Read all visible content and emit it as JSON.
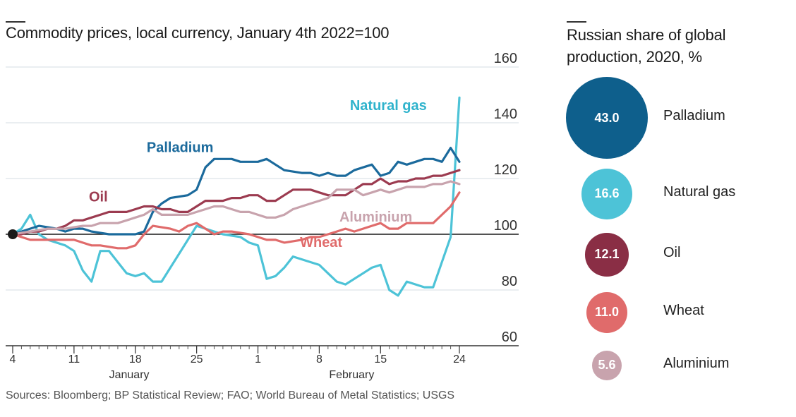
{
  "chart_data": [
    {
      "type": "line",
      "title": "Commodity prices, local currency, January 4th 2022=100",
      "y_ticks": [
        "160",
        "140",
        "120",
        "100",
        "80",
        "60"
      ],
      "ylim": [
        60,
        160
      ],
      "baseline": 100,
      "x_day_range": [
        0,
        51
      ],
      "x_ticks": [
        {
          "day": 0,
          "label": "4"
        },
        {
          "day": 7,
          "label": "11"
        },
        {
          "day": 14,
          "label": "18"
        },
        {
          "day": 21,
          "label": "25"
        },
        {
          "day": 28,
          "label": "1"
        },
        {
          "day": 35,
          "label": "8"
        },
        {
          "day": 42,
          "label": "15"
        },
        {
          "day": 51,
          "label": "24"
        }
      ],
      "month_labels": [
        {
          "day": 13.3,
          "label": "January"
        },
        {
          "day": 38.7,
          "label": "February"
        }
      ],
      "series": [
        {
          "name": "Natural gas",
          "color": "#4dc3d7",
          "x": [
            0,
            1,
            2,
            3,
            4,
            6,
            7,
            8,
            9,
            10,
            11,
            12,
            13,
            14,
            15,
            16,
            17,
            18,
            20,
            21,
            22,
            23,
            24,
            26,
            27,
            28,
            29,
            30,
            31,
            32,
            34,
            35,
            36,
            37,
            38,
            40,
            41,
            42,
            43,
            44,
            45,
            46,
            47,
            48,
            49,
            50,
            51
          ],
          "y": [
            100,
            102,
            107,
            100,
            98,
            96,
            94,
            87,
            83,
            94,
            94,
            90,
            86,
            85,
            86,
            83,
            83,
            88,
            98,
            103,
            102,
            101,
            100,
            99,
            97,
            96,
            84,
            85,
            88,
            92,
            90,
            89,
            86,
            83,
            82,
            86,
            88,
            89,
            80,
            78,
            83,
            82,
            81,
            81,
            90,
            99,
            149
          ]
        },
        {
          "name": "Palladium",
          "color": "#1b6a9c",
          "x": [
            0,
            1,
            2,
            3,
            5,
            6,
            7,
            8,
            9,
            11,
            12,
            13,
            14,
            15,
            16,
            17,
            18,
            20,
            21,
            22,
            23,
            24,
            25,
            26,
            27,
            28,
            29,
            30,
            31,
            33,
            34,
            35,
            36,
            37,
            38,
            39,
            40,
            41,
            42,
            43,
            44,
            45,
            46,
            47,
            48,
            49,
            50,
            51
          ],
          "y": [
            100,
            101,
            102,
            103,
            102,
            101,
            102,
            102,
            101,
            100,
            100,
            100,
            100,
            101,
            108,
            111,
            113,
            114,
            116,
            124,
            127,
            127,
            127,
            126,
            126,
            126,
            127,
            125,
            123,
            122,
            122,
            121,
            122,
            121,
            121,
            123,
            124,
            125,
            121,
            122,
            126,
            125,
            126,
            127,
            127,
            126,
            131,
            126
          ]
        },
        {
          "name": "Oil",
          "color": "#9c3b50",
          "x": [
            0,
            1,
            2,
            3,
            4,
            5,
            6,
            7,
            8,
            9,
            10,
            11,
            12,
            13,
            14,
            15,
            16,
            17,
            18,
            19,
            20,
            21,
            22,
            23,
            24,
            25,
            26,
            27,
            28,
            29,
            30,
            31,
            32,
            33,
            34,
            35,
            36,
            37,
            38,
            39,
            40,
            41,
            42,
            43,
            44,
            45,
            46,
            47,
            48,
            49,
            50,
            51
          ],
          "y": [
            100,
            100,
            101,
            101,
            102,
            102,
            103,
            105,
            105,
            106,
            107,
            108,
            108,
            108,
            109,
            110,
            110,
            109,
            109,
            108,
            108,
            110,
            112,
            112,
            112,
            113,
            113,
            114,
            114,
            112,
            112,
            114,
            116,
            116,
            116,
            115,
            114,
            114,
            114,
            116,
            118,
            118,
            120,
            118,
            119,
            119,
            120,
            120,
            121,
            121,
            122,
            123
          ]
        },
        {
          "name": "Aluminium",
          "color": "#c8a3ad",
          "x": [
            0,
            2,
            4,
            6,
            8,
            9,
            10,
            11,
            12,
            13,
            14,
            15,
            16,
            17,
            18,
            19,
            20,
            21,
            22,
            23,
            24,
            25,
            26,
            27,
            28,
            29,
            30,
            31,
            32,
            33,
            34,
            35,
            36,
            37,
            38,
            39,
            40,
            41,
            42,
            43,
            44,
            45,
            46,
            47,
            48,
            49,
            50,
            51
          ],
          "y": [
            100,
            101,
            102,
            102,
            103,
            103,
            104,
            104,
            104,
            105,
            106,
            107,
            109,
            107,
            107,
            107,
            107,
            108,
            109,
            110,
            110,
            109,
            108,
            108,
            107,
            106,
            106,
            107,
            109,
            110,
            111,
            112,
            113,
            116,
            116,
            116,
            114,
            115,
            116,
            115,
            116,
            117,
            117,
            117,
            118,
            118,
            119,
            118
          ]
        },
        {
          "name": "Wheat",
          "color": "#e06b6b",
          "x": [
            0,
            2,
            4,
            6,
            7,
            8,
            9,
            10,
            12,
            13,
            14,
            15,
            16,
            18,
            19,
            20,
            21,
            22,
            23,
            24,
            25,
            27,
            28,
            29,
            30,
            31,
            33,
            34,
            35,
            36,
            37,
            38,
            39,
            40,
            41,
            42,
            43,
            44,
            45,
            46,
            47,
            48,
            49,
            50,
            51
          ],
          "y": [
            100,
            98,
            98,
            98,
            98,
            97,
            96,
            96,
            95,
            95,
            96,
            100,
            103,
            102,
            101,
            103,
            104,
            102,
            100,
            101,
            101,
            100,
            99,
            98,
            98,
            97,
            98,
            99,
            99,
            100,
            101,
            102,
            101,
            102,
            103,
            104,
            102,
            102,
            104,
            104,
            104,
            104,
            107,
            110,
            115
          ]
        }
      ],
      "series_labels": [
        {
          "series": "Natural gas",
          "text": "Natural gas",
          "day": 38.5,
          "value": 144.5,
          "anchor": "start"
        },
        {
          "series": "Palladium",
          "text": "Palladium",
          "day": 15.3,
          "value": 129.5,
          "anchor": "start"
        },
        {
          "series": "Oil",
          "text": "Oil",
          "day": 8.7,
          "value": 111.8,
          "anchor": "start"
        },
        {
          "series": "Aluminium",
          "text": "Aluminium",
          "day": 37.3,
          "value": 104.5,
          "anchor": "start"
        },
        {
          "series": "Wheat",
          "text": "Wheat",
          "day": 32.8,
          "value": 95.5,
          "anchor": "start"
        }
      ]
    },
    {
      "type": "bubble",
      "title": "Russian share of global production, 2020, %",
      "categories": [
        "Palladium",
        "Natural gas",
        "Oil",
        "Wheat",
        "Aluminium"
      ],
      "values": [
        43.0,
        16.6,
        12.1,
        11.0,
        5.6
      ],
      "value_labels": [
        "43.0",
        "16.6",
        "12.1",
        "11.0",
        "5.6"
      ],
      "colors": [
        "#0e5f8c",
        "#4dc3d7",
        "#8a2e45",
        "#e06b6b",
        "#c8a3ad"
      ]
    }
  ],
  "footer": {
    "source": "Sources: Bloomberg; BP Statistical Review; FAO; World Bureau of Metal Statistics; USGS"
  }
}
